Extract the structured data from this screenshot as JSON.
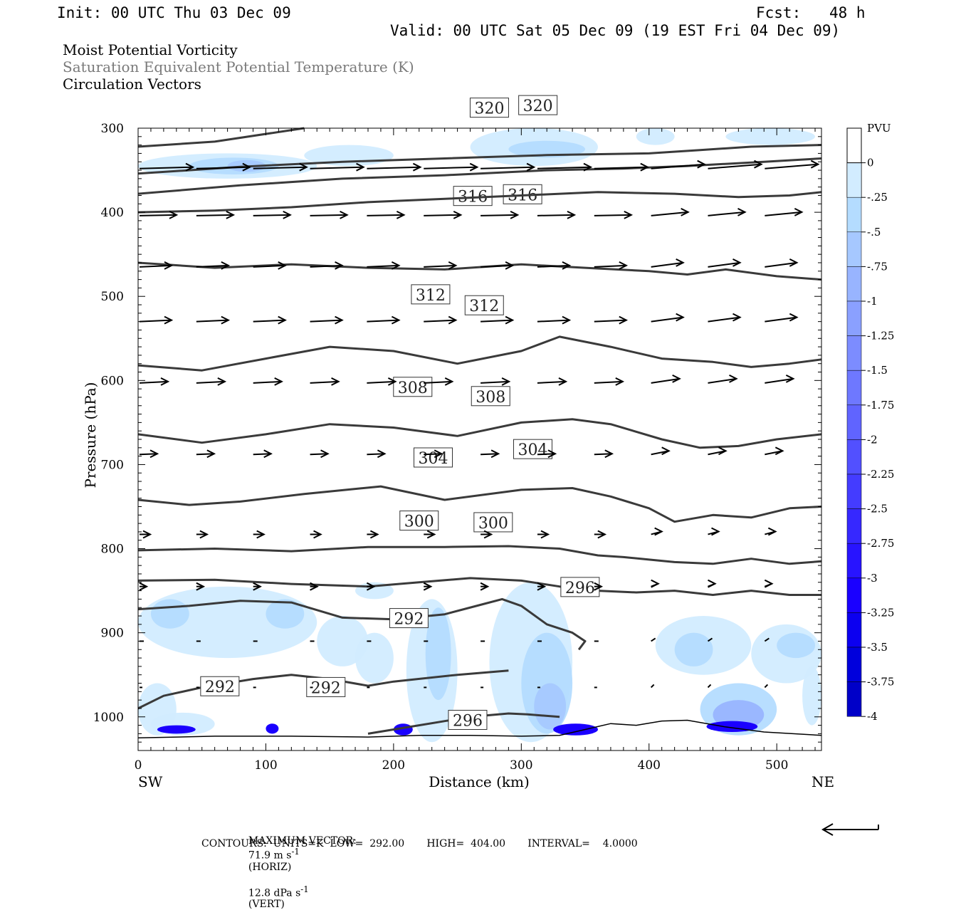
{
  "header": {
    "init": "Init: 00 UTC Thu 03 Dec 09",
    "fcst_label": "Fcst:",
    "fcst_value": "48 h",
    "valid": "Valid: 00 UTC Sat 05 Dec 09 (19 EST Fri 04 Dec 09)"
  },
  "titles": {
    "line1": "Moist Potential Vorticity",
    "line2": "Saturation Equivalent Potential Temperature (K)",
    "line3": "Circulation Vectors"
  },
  "footer": {
    "max_vector_label": "MAXIMUM VECTOR:",
    "max_vector_horiz": "71.9 m s",
    "horiz_unit_exp": "-1",
    "horiz_tag": "(HORIZ)",
    "max_vector_vert": "12.8 dPa s",
    "vert_unit_exp": "-1",
    "vert_tag": "(VERT)",
    "contours": "CONTOURS:  UNITS=K  LOW=  292.00       HIGH=  404.00       INTERVAL=    4.0000"
  },
  "colors": {
    "contour": "#3a3a3a",
    "pv_shades": [
      "#d2ecff",
      "#b4dcff",
      "#a6c8ff",
      "#98b4ff",
      "#8aa0ff",
      "#7c8cff",
      "#6e78ff",
      "#6064ff",
      "#5250ff",
      "#443cff",
      "#3628ff",
      "#2814ff",
      "#1a00ff",
      "#0c00f0",
      "#0000dc",
      "#0000c8"
    ]
  },
  "chart_data": {
    "type": "cross-section",
    "xlabel": "Distance (km)",
    "ylabel": "Pressure (hPa)",
    "x_left_label": "SW",
    "x_right_label": "NE",
    "xlim": [
      0,
      535
    ],
    "ylim": [
      1040,
      300
    ],
    "xticks": [
      "0",
      "100",
      "200",
      "300",
      "400",
      "500"
    ],
    "xtick_values": [
      0,
      100,
      200,
      300,
      400,
      500
    ],
    "yticks": [
      "300",
      "400",
      "500",
      "600",
      "700",
      "800",
      "900",
      "1000"
    ],
    "ytick_values": [
      300,
      400,
      500,
      600,
      700,
      800,
      900,
      1000
    ],
    "colorbar": {
      "unit": "PVU",
      "labels": [
        "0",
        "-.25",
        "-.5",
        "-.75",
        "-1",
        "-1.25",
        "-1.5",
        "-1.75",
        "-2",
        "-2.25",
        "-2.5",
        "-2.75",
        "-3",
        "-3.25",
        "-3.5",
        "-3.75",
        "-4"
      ]
    },
    "theta_e_contours": [
      {
        "level": 292,
        "labels": [
          "292"
        ],
        "label_pos": [
          [
            212,
            883
          ]
        ],
        "points": [
          [
            0,
            872
          ],
          [
            40,
            868
          ],
          [
            80,
            862
          ],
          [
            120,
            864
          ],
          [
            160,
            882
          ],
          [
            200,
            884
          ],
          [
            240,
            878
          ],
          [
            270,
            866
          ],
          [
            285,
            860
          ],
          [
            300,
            868
          ],
          [
            320,
            890
          ],
          [
            340,
            900
          ],
          [
            350,
            910
          ],
          [
            345,
            920
          ]
        ]
      },
      {
        "level": 292,
        "labels": [
          "292",
          "292"
        ],
        "label_pos": [
          [
            64,
            964
          ],
          [
            147,
            965
          ]
        ],
        "points": [
          [
            0,
            990
          ],
          [
            20,
            975
          ],
          [
            50,
            965
          ],
          [
            90,
            955
          ],
          [
            120,
            950
          ],
          [
            150,
            955
          ],
          [
            180,
            963
          ],
          [
            200,
            958
          ],
          [
            250,
            950
          ],
          [
            290,
            945
          ]
        ]
      },
      {
        "level": 296,
        "labels": [
          "296"
        ],
        "label_pos": [
          [
            258,
            1004
          ]
        ],
        "points": [
          [
            180,
            1020
          ],
          [
            200,
            1015
          ],
          [
            240,
            1005
          ],
          [
            260,
            1000
          ],
          [
            290,
            996
          ],
          [
            305,
            997
          ],
          [
            330,
            1000
          ]
        ]
      },
      {
        "level": 296,
        "labels": [
          "296"
        ],
        "label_pos": [
          [
            346,
            846
          ]
        ],
        "points": [
          [
            0,
            838
          ],
          [
            60,
            837
          ],
          [
            120,
            842
          ],
          [
            180,
            845
          ],
          [
            220,
            840
          ],
          [
            260,
            835
          ],
          [
            300,
            838
          ],
          [
            330,
            845
          ],
          [
            360,
            850
          ],
          [
            390,
            852
          ],
          [
            420,
            850
          ],
          [
            450,
            855
          ],
          [
            480,
            850
          ],
          [
            510,
            855
          ],
          [
            535,
            855
          ]
        ]
      },
      {
        "level": 300,
        "labels": [
          "300",
          "300"
        ],
        "label_pos": [
          [
            220,
            767
          ],
          [
            278,
            769
          ]
        ],
        "points": [
          [
            0,
            802
          ],
          [
            60,
            800
          ],
          [
            120,
            803
          ],
          [
            180,
            798
          ],
          [
            240,
            798
          ],
          [
            290,
            797
          ],
          [
            330,
            800
          ],
          [
            360,
            808
          ],
          [
            380,
            810
          ],
          [
            400,
            813
          ],
          [
            420,
            816
          ],
          [
            450,
            818
          ],
          [
            480,
            812
          ],
          [
            510,
            818
          ],
          [
            535,
            815
          ]
        ]
      },
      {
        "level": 304,
        "labels": [
          "304",
          "304"
        ],
        "label_pos": [
          [
            231,
            692
          ],
          [
            309,
            682
          ]
        ],
        "points": [
          [
            0,
            742
          ],
          [
            40,
            748
          ],
          [
            80,
            744
          ],
          [
            130,
            735
          ],
          [
            190,
            726
          ],
          [
            240,
            742
          ],
          [
            300,
            730
          ],
          [
            340,
            728
          ],
          [
            370,
            738
          ],
          [
            400,
            752
          ],
          [
            420,
            768
          ],
          [
            450,
            760
          ],
          [
            480,
            763
          ],
          [
            510,
            752
          ],
          [
            535,
            750
          ]
        ]
      },
      {
        "level": 308,
        "labels": [
          "308",
          "308"
        ],
        "label_pos": [
          [
            215,
            608
          ],
          [
            276,
            619
          ]
        ],
        "points": [
          [
            0,
            664
          ],
          [
            50,
            674
          ],
          [
            100,
            664
          ],
          [
            150,
            652
          ],
          [
            200,
            656
          ],
          [
            250,
            666
          ],
          [
            300,
            650
          ],
          [
            340,
            646
          ],
          [
            370,
            652
          ],
          [
            410,
            670
          ],
          [
            440,
            680
          ],
          [
            470,
            678
          ],
          [
            500,
            670
          ],
          [
            535,
            664
          ]
        ]
      },
      {
        "level": 312,
        "labels": [
          "312",
          "312"
        ],
        "label_pos": [
          [
            229,
            498
          ],
          [
            271,
            511
          ]
        ],
        "points": [
          [
            0,
            582
          ],
          [
            50,
            588
          ],
          [
            100,
            574
          ],
          [
            150,
            560
          ],
          [
            200,
            565
          ],
          [
            250,
            580
          ],
          [
            300,
            565
          ],
          [
            330,
            548
          ],
          [
            370,
            560
          ],
          [
            410,
            574
          ],
          [
            450,
            578
          ],
          [
            480,
            584
          ],
          [
            510,
            580
          ],
          [
            535,
            575
          ]
        ]
      },
      {
        "level": 316,
        "labels": [
          "316",
          "316"
        ],
        "label_pos": [
          [
            262,
            381
          ],
          [
            301,
            379
          ]
        ],
        "points": [
          [
            0,
            460
          ],
          [
            60,
            466
          ],
          [
            120,
            462
          ],
          [
            180,
            466
          ],
          [
            240,
            468
          ],
          [
            300,
            462
          ],
          [
            350,
            466
          ],
          [
            400,
            470
          ],
          [
            430,
            474
          ],
          [
            460,
            468
          ],
          [
            500,
            476
          ],
          [
            535,
            480
          ]
        ]
      },
      {
        "level": 320,
        "labels": [
          "320",
          "320"
        ],
        "label_pos": [
          [
            275,
            276
          ],
          [
            313,
            273
          ]
        ],
        "points": [
          [
            0,
            400
          ],
          [
            60,
            398
          ],
          [
            120,
            394
          ],
          [
            180,
            388
          ],
          [
            240,
            384
          ],
          [
            300,
            380
          ],
          [
            360,
            376
          ],
          [
            420,
            378
          ],
          [
            470,
            382
          ],
          [
            510,
            380
          ],
          [
            535,
            376
          ]
        ]
      },
      {
        "level": 324,
        "labels": [],
        "label_pos": [],
        "points": [
          [
            0,
            378
          ],
          [
            80,
            368
          ],
          [
            160,
            360
          ],
          [
            240,
            356
          ],
          [
            320,
            350
          ],
          [
            380,
            348
          ],
          [
            430,
            345
          ],
          [
            490,
            340
          ],
          [
            535,
            336
          ]
        ]
      },
      {
        "level": 328,
        "labels": [],
        "label_pos": [],
        "points": [
          [
            0,
            354
          ],
          [
            80,
            346
          ],
          [
            160,
            340
          ],
          [
            240,
            336
          ],
          [
            320,
            332
          ],
          [
            400,
            330
          ],
          [
            440,
            326
          ],
          [
            480,
            322
          ],
          [
            535,
            320
          ]
        ]
      },
      {
        "level": 332,
        "labels": [],
        "label_pos": [],
        "points": [
          [
            0,
            322
          ],
          [
            60,
            316
          ],
          [
            130,
            300
          ]
        ]
      }
    ]
  }
}
